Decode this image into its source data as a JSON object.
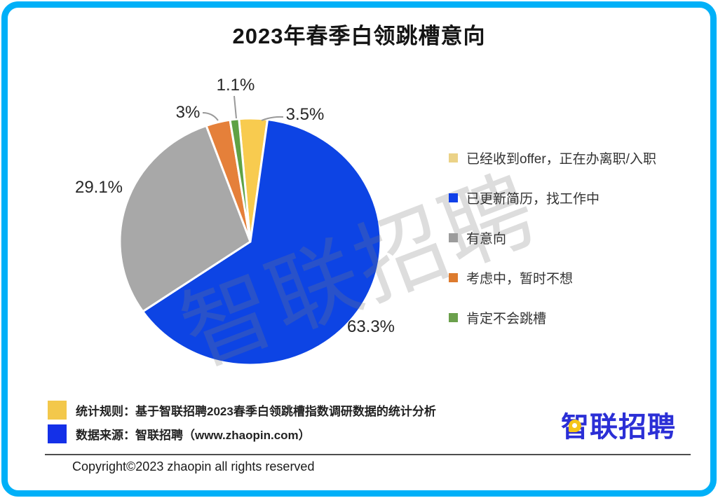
{
  "title": "2023年春季白领跳槽意向",
  "watermark": "智联招聘",
  "frame": {
    "border_color": "#00B0F8"
  },
  "chart_data": {
    "type": "pie",
    "title": "2023年春季白领跳槽意向",
    "start_angle_deg": -5,
    "direction": "clockwise",
    "legend_position": "right",
    "slices": [
      {
        "label": "已经收到offer，正在办离职/入职",
        "value": 3.5,
        "display": "3.5%",
        "color": "#F8CB4F",
        "legend_marker_color": "#EBD287"
      },
      {
        "label": "已更新简历，找工作中",
        "value": 63.3,
        "display": "63.3%",
        "color": "#0D44E4",
        "legend_marker_color": "#1040E8"
      },
      {
        "label": "有意向",
        "value": 29.1,
        "display": "29.1%",
        "color": "#A8A8A8",
        "legend_marker_color": "#9C9C9C"
      },
      {
        "label": "考虑中，暂时不想",
        "value": 3.0,
        "display": "3%",
        "color": "#E5803A",
        "legend_marker_color": "#DD7B2E"
      },
      {
        "label": "肯定不会跳槽",
        "value": 1.1,
        "display": "1.1%",
        "color": "#5FA245",
        "legend_marker_color": "#6BA04C"
      }
    ]
  },
  "footnotes": [
    {
      "marker_color": "#F3C84B",
      "text": "统计规则：基于智联招聘2023春季白领跳槽指数调研数据的统计分析"
    },
    {
      "marker_color": "#1430E8",
      "text": "数据来源：智联招聘（www.zhaopin.com）"
    }
  ],
  "logo": {
    "text": "智联招聘"
  },
  "copyright": "Copyright©2023 zhaopin all rights reserved"
}
